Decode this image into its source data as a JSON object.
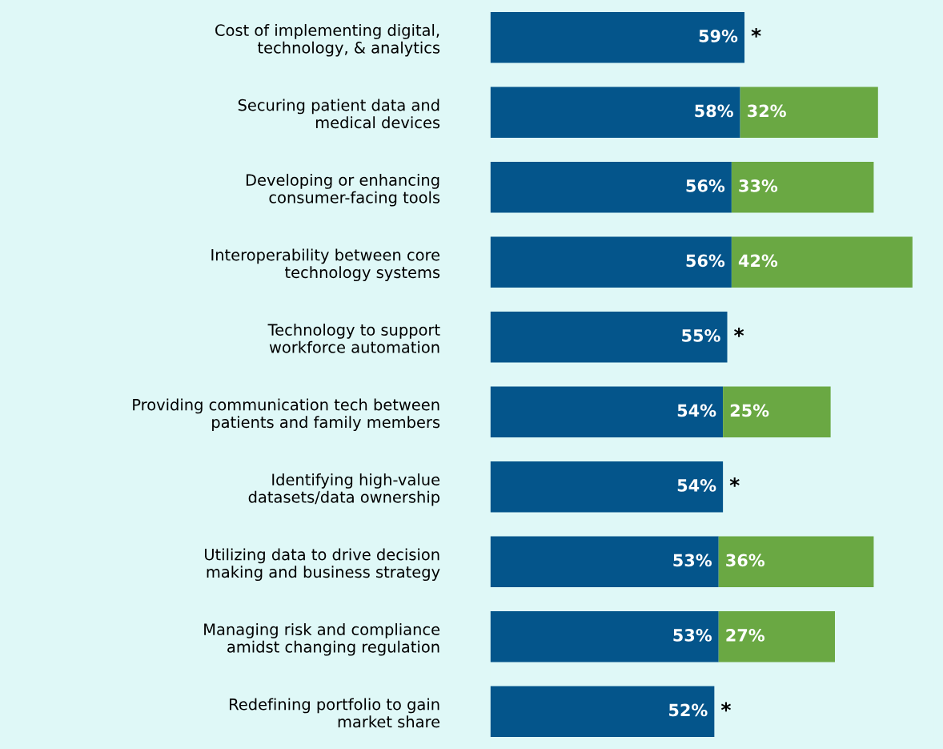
{
  "chart_data": {
    "type": "bar",
    "orientation": "horizontal",
    "stacked": true,
    "legend": false,
    "grid": false,
    "tick_labels": "y",
    "categories": [
      "Cost of implementing digital,\ntechnology, & analytics",
      "Securing patient data and\nmedical devices",
      "Developing or enhancing\nconsumer-facing tools",
      "Interoperability between core\ntechnology systems",
      "Technology to support\nworkforce automation",
      "Providing communication tech between\npatients and family members",
      "Identifying high-value\ndatasets/data ownership",
      "Utilizing data to drive decision\nmaking and business strategy",
      "Managing risk and compliance\namidst changing regulation",
      "Redefining portfolio to gain\nmarket share"
    ],
    "series": [
      {
        "color": "#04558b",
        "values": [
          59,
          58,
          56,
          56,
          55,
          54,
          54,
          53,
          53,
          52
        ],
        "value_labels": [
          "59%",
          "58%",
          "56%",
          "56%",
          "55%",
          "54%",
          "54%",
          "53%",
          "53%",
          "52%"
        ]
      },
      {
        "color": "#6aa843",
        "values": [
          null,
          32,
          33,
          42,
          null,
          25,
          null,
          36,
          27,
          null
        ],
        "value_labels": [
          null,
          "32%",
          "33%",
          "42%",
          null,
          "25%",
          null,
          "36%",
          "27%",
          null
        ]
      }
    ],
    "annotations": [
      {
        "text": "*",
        "x": 59,
        "y": "Cost of implementing digital,\ntechnology, & analytics"
      },
      {
        "text": "*",
        "x": 55,
        "y": "Technology to support\nworkforce automation"
      },
      {
        "text": "*",
        "x": 54,
        "y": "Identifying high-value\ndatasets/data ownership"
      },
      {
        "text": "*",
        "x": 52,
        "y": "Redefining portfolio to gain\nmarket share"
      }
    ]
  }
}
